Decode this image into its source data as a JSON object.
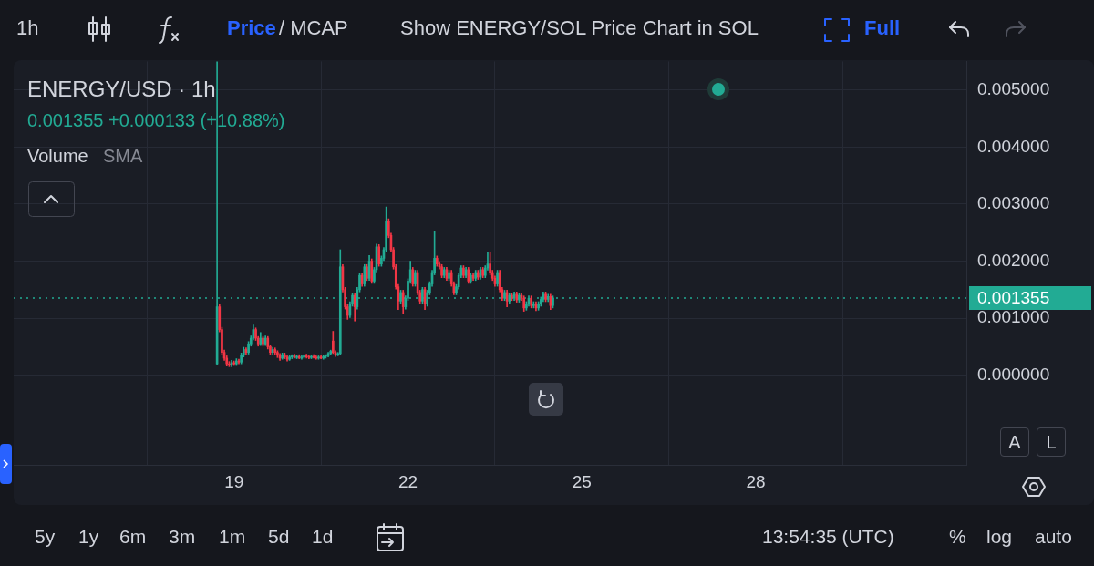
{
  "chart_data": {
    "type": "candlestick",
    "title": "ENERGY/USD · 1h",
    "x": [
      18.708,
      18.75,
      18.792,
      18.833,
      18.875,
      18.917,
      18.958,
      19,
      19.042,
      19.083,
      19.125,
      19.167,
      19.208,
      19.25,
      19.292,
      19.333,
      19.375,
      19.417,
      19.458,
      19.5,
      19.542,
      19.583,
      19.625,
      19.667,
      19.708,
      19.75,
      19.792,
      19.833,
      19.875,
      19.917,
      19.958,
      20,
      20.042,
      20.083,
      20.125,
      20.167,
      20.208,
      20.25,
      20.292,
      20.333,
      20.375,
      20.417,
      20.458,
      20.5,
      20.542,
      20.583,
      20.625,
      20.667,
      20.708,
      20.75,
      20.792,
      20.833,
      20.875,
      20.917,
      20.958,
      21,
      21.042,
      21.083,
      21.125,
      21.167,
      21.208,
      21.25,
      21.292,
      21.333,
      21.375,
      21.417,
      21.458,
      21.5,
      21.542,
      21.583,
      21.625,
      21.667,
      21.708,
      21.75,
      21.792,
      21.833,
      21.875,
      21.917,
      21.958,
      22,
      22.042,
      22.083,
      22.125,
      22.167,
      22.208,
      22.25,
      22.292,
      22.333,
      22.375,
      22.417,
      22.458,
      22.5,
      22.542,
      22.583,
      22.625,
      22.667,
      22.708,
      22.75,
      22.792,
      22.833,
      22.875,
      22.917,
      22.958,
      23,
      23.042,
      23.083,
      23.125,
      23.167,
      23.208,
      23.25,
      23.292,
      23.333,
      23.375,
      23.417,
      23.458,
      23.5,
      23.542,
      23.583,
      23.625,
      23.667,
      23.708,
      23.75,
      23.792,
      23.833,
      23.875,
      23.917,
      23.958,
      24,
      24.042,
      24.083,
      24.125,
      24.167,
      24.208,
      24.25,
      24.292,
      24.333,
      24.375,
      24.417,
      24.458,
      24.5
    ],
    "ohlc": [
      [
        0.0002,
        0.0055,
        0.00018,
        0.0012
      ],
      [
        0.0012,
        0.00124,
        0.00076,
        0.0008
      ],
      [
        0.0008,
        0.00084,
        0.00036,
        0.0004
      ],
      [
        0.0004,
        0.00044,
        0.00026,
        0.0003
      ],
      [
        0.0003,
        0.00034,
        0.00016,
        0.0002
      ],
      [
        0.0002,
        0.00024,
        0.00015,
        0.00018
      ],
      [
        0.00018,
        0.00026,
        0.00015,
        0.00022
      ],
      [
        0.00022,
        0.00025,
        0.00017,
        0.0002
      ],
      [
        0.0002,
        0.00029,
        0.00017,
        0.00025
      ],
      [
        0.00025,
        0.00028,
        0.0002,
        0.00023
      ],
      [
        0.00023,
        0.00039,
        0.0002,
        0.00035
      ],
      [
        0.00035,
        0.00049,
        0.00032,
        0.00045
      ],
      [
        0.00045,
        0.00048,
        0.00036,
        0.0004
      ],
      [
        0.0004,
        0.00059,
        0.00037,
        0.00055
      ],
      [
        0.00055,
        0.00069,
        0.00051,
        0.00065
      ],
      [
        0.00065,
        0.00088,
        0.00062,
        0.0008
      ],
      [
        0.0008,
        0.00083,
        0.00061,
        0.00065
      ],
      [
        0.00065,
        0.00068,
        0.00051,
        0.00055
      ],
      [
        0.00055,
        0.00075,
        0.00052,
        0.00065
      ],
      [
        0.00065,
        0.00068,
        0.00051,
        0.00055
      ],
      [
        0.00055,
        0.00069,
        0.00052,
        0.00065
      ],
      [
        0.00065,
        0.00068,
        0.00046,
        0.0005
      ],
      [
        0.0005,
        0.00053,
        0.00036,
        0.0004
      ],
      [
        0.0004,
        0.00049,
        0.00037,
        0.00045
      ],
      [
        0.00045,
        0.00048,
        0.00036,
        0.0004
      ],
      [
        0.0004,
        0.00043,
        0.00031,
        0.00035
      ],
      [
        0.00035,
        0.00038,
        0.00026,
        0.0003
      ],
      [
        0.0003,
        0.00039,
        0.00028,
        0.00036
      ],
      [
        0.00036,
        0.00039,
        0.00029,
        0.00032
      ],
      [
        0.00032,
        0.00035,
        0.00025,
        0.00028
      ],
      [
        0.00028,
        0.00035,
        0.00026,
        0.00032
      ],
      [
        0.00032,
        0.00036,
        0.00029,
        0.00034
      ],
      [
        0.00034,
        0.00037,
        0.0003,
        0.00031
      ],
      [
        0.00031,
        0.00035,
        0.00029,
        0.00033
      ],
      [
        0.00033,
        0.00036,
        0.00029,
        0.0003
      ],
      [
        0.0003,
        0.00034,
        0.00028,
        0.00032
      ],
      [
        0.00032,
        0.00036,
        0.0003,
        0.00034
      ],
      [
        0.00034,
        0.00037,
        0.0003,
        0.00032
      ],
      [
        0.00032,
        0.00035,
        0.00029,
        0.00031
      ],
      [
        0.00031,
        0.00035,
        0.00029,
        0.00033
      ],
      [
        0.00033,
        0.00036,
        0.0003,
        0.00031
      ],
      [
        0.00031,
        0.00034,
        0.00028,
        0.0003
      ],
      [
        0.0003,
        0.00034,
        0.00028,
        0.00032
      ],
      [
        0.00032,
        0.00035,
        0.00029,
        0.0003
      ],
      [
        0.0003,
        0.00035,
        0.00028,
        0.00033
      ],
      [
        0.00033,
        0.00036,
        0.0003,
        0.00034
      ],
      [
        0.00034,
        0.0004,
        0.00032,
        0.00038
      ],
      [
        0.00038,
        0.00044,
        0.00036,
        0.00042
      ],
      [
        0.0006,
        0.00077,
        0.00038,
        0.0004
      ],
      [
        0.0004,
        0.00043,
        0.00033,
        0.00036
      ],
      [
        0.00036,
        0.0004,
        0.00034,
        0.00038
      ],
      [
        0.00038,
        0.0022,
        0.00036,
        0.0019
      ],
      [
        0.0019,
        0.00194,
        0.00146,
        0.0015
      ],
      [
        0.0015,
        0.00154,
        0.00116,
        0.0012
      ],
      [
        0.0012,
        0.00124,
        0.00098,
        0.00105
      ],
      [
        0.00105,
        0.00129,
        0.00101,
        0.00125
      ],
      [
        0.00125,
        0.00144,
        0.00121,
        0.0014
      ],
      [
        0.0014,
        0.00144,
        0.00095,
        0.0012
      ],
      [
        0.0012,
        0.00154,
        0.00116,
        0.0015
      ],
      [
        0.0015,
        0.00179,
        0.00146,
        0.00175
      ],
      [
        0.00175,
        0.00179,
        0.00156,
        0.0016
      ],
      [
        0.0016,
        0.00194,
        0.00156,
        0.0019
      ],
      [
        0.0019,
        0.00194,
        0.00166,
        0.0017
      ],
      [
        0.0017,
        0.0021,
        0.00166,
        0.002
      ],
      [
        0.002,
        0.00204,
        0.00161,
        0.00165
      ],
      [
        0.00165,
        0.00189,
        0.00161,
        0.00185
      ],
      [
        0.00185,
        0.0023,
        0.00181,
        0.00225
      ],
      [
        0.00225,
        0.00229,
        0.00191,
        0.00195
      ],
      [
        0.00195,
        0.00209,
        0.00191,
        0.00205
      ],
      [
        0.00205,
        0.00224,
        0.00201,
        0.0022
      ],
      [
        0.0022,
        0.00295,
        0.00216,
        0.0027
      ],
      [
        0.0027,
        0.00274,
        0.00241,
        0.00245
      ],
      [
        0.00245,
        0.00249,
        0.00216,
        0.0022
      ],
      [
        0.0022,
        0.00224,
        0.00186,
        0.0019
      ],
      [
        0.0019,
        0.00194,
        0.00151,
        0.00155
      ],
      [
        0.00155,
        0.00159,
        0.00115,
        0.0013
      ],
      [
        0.0013,
        0.00149,
        0.00126,
        0.00145
      ],
      [
        0.00145,
        0.00149,
        0.00108,
        0.0012
      ],
      [
        0.0012,
        0.00139,
        0.00116,
        0.00135
      ],
      [
        0.00135,
        0.00169,
        0.00131,
        0.00165
      ],
      [
        0.00165,
        0.002,
        0.00161,
        0.00185
      ],
      [
        0.00185,
        0.00189,
        0.00156,
        0.0016
      ],
      [
        0.0016,
        0.00184,
        0.00156,
        0.0018
      ],
      [
        0.0018,
        0.00184,
        0.00141,
        0.00145
      ],
      [
        0.00145,
        0.00149,
        0.00126,
        0.0013
      ],
      [
        0.0013,
        0.00154,
        0.00126,
        0.0015
      ],
      [
        0.0015,
        0.00154,
        0.00115,
        0.00125
      ],
      [
        0.00125,
        0.00149,
        0.00121,
        0.00145
      ],
      [
        0.00145,
        0.00164,
        0.00141,
        0.0016
      ],
      [
        0.0016,
        0.00184,
        0.00156,
        0.0018
      ],
      [
        0.0018,
        0.00253,
        0.00176,
        0.00205
      ],
      [
        0.00205,
        0.00209,
        0.00191,
        0.00195
      ],
      [
        0.00195,
        0.00199,
        0.00186,
        0.0019
      ],
      [
        0.0019,
        0.00194,
        0.00171,
        0.00175
      ],
      [
        0.00175,
        0.00189,
        0.00171,
        0.00185
      ],
      [
        0.00185,
        0.00189,
        0.00166,
        0.0017
      ],
      [
        0.0017,
        0.00184,
        0.00166,
        0.0018
      ],
      [
        0.0018,
        0.00184,
        0.00156,
        0.0016
      ],
      [
        0.0016,
        0.00164,
        0.00141,
        0.00145
      ],
      [
        0.00145,
        0.00159,
        0.00141,
        0.00155
      ],
      [
        0.00155,
        0.00179,
        0.00151,
        0.00175
      ],
      [
        0.00175,
        0.00192,
        0.00171,
        0.00188
      ],
      [
        0.00188,
        0.00192,
        0.00171,
        0.00175
      ],
      [
        0.00175,
        0.00189,
        0.00171,
        0.00185
      ],
      [
        0.00185,
        0.00189,
        0.00161,
        0.00165
      ],
      [
        0.00165,
        0.00179,
        0.00161,
        0.00175
      ],
      [
        0.00175,
        0.00179,
        0.00166,
        0.0017
      ],
      [
        0.0017,
        0.00184,
        0.00166,
        0.0018
      ],
      [
        0.0018,
        0.00184,
        0.00168,
        0.00172
      ],
      [
        0.00172,
        0.00189,
        0.00168,
        0.00185
      ],
      [
        0.00185,
        0.00189,
        0.00171,
        0.00175
      ],
      [
        0.00175,
        0.00192,
        0.00171,
        0.00188
      ],
      [
        0.00188,
        0.00215,
        0.00184,
        0.00195
      ],
      [
        0.00195,
        0.00215,
        0.00176,
        0.0018
      ],
      [
        0.0018,
        0.00184,
        0.00166,
        0.0017
      ],
      [
        0.0017,
        0.00174,
        0.00156,
        0.0016
      ],
      [
        0.0016,
        0.00184,
        0.00156,
        0.0018
      ],
      [
        0.0018,
        0.00184,
        0.00146,
        0.0015
      ],
      [
        0.0015,
        0.00154,
        0.00131,
        0.00135
      ],
      [
        0.00135,
        0.00149,
        0.00131,
        0.00145
      ],
      [
        0.00145,
        0.00149,
        0.0012,
        0.0013
      ],
      [
        0.0013,
        0.00144,
        0.00126,
        0.0014
      ],
      [
        0.0014,
        0.00144,
        0.00131,
        0.00135
      ],
      [
        0.00135,
        0.00146,
        0.00131,
        0.00142
      ],
      [
        0.00142,
        0.00146,
        0.00128,
        0.00132
      ],
      [
        0.00132,
        0.00144,
        0.00128,
        0.0014
      ],
      [
        0.0014,
        0.00144,
        0.00131,
        0.00135
      ],
      [
        0.00135,
        0.00139,
        0.00112,
        0.00118
      ],
      [
        0.00118,
        0.00129,
        0.00114,
        0.00125
      ],
      [
        0.00125,
        0.00139,
        0.00121,
        0.00135
      ],
      [
        0.00135,
        0.00139,
        0.00118,
        0.00122
      ],
      [
        0.00122,
        0.00129,
        0.00118,
        0.00125
      ],
      [
        0.00125,
        0.00129,
        0.00113,
        0.00118
      ],
      [
        0.00118,
        0.00129,
        0.00114,
        0.00125
      ],
      [
        0.00125,
        0.00137,
        0.00121,
        0.00133
      ],
      [
        0.00133,
        0.00146,
        0.00129,
        0.00142
      ],
      [
        0.00142,
        0.00146,
        0.00129,
        0.00133
      ],
      [
        0.00133,
        0.00142,
        0.00129,
        0.00138
      ],
      [
        0.00138,
        0.00142,
        0.00115,
        0.001222
      ],
      [
        0.001222,
        0.00139,
        0.00118,
        0.001355
      ]
    ],
    "colors": [
      "#22ab94",
      "#f23645",
      "#f23645",
      "#f23645",
      "#f23645",
      "#f23645",
      "#22ab94",
      "#f23645",
      "#22ab94",
      "#f23645",
      "#22ab94",
      "#22ab94",
      "#f23645",
      "#22ab94",
      "#22ab94",
      "#22ab94",
      "#f23645",
      "#f23645",
      "#22ab94",
      "#f23645",
      "#22ab94",
      "#f23645",
      "#f23645",
      "#22ab94",
      "#f23645",
      "#f23645",
      "#f23645",
      "#22ab94",
      "#f23645",
      "#f23645",
      "#22ab94",
      "#22ab94",
      "#f23645",
      "#22ab94",
      "#f23645",
      "#22ab94",
      "#22ab94",
      "#f23645",
      "#f23645",
      "#22ab94",
      "#f23645",
      "#f23645",
      "#22ab94",
      "#f23645",
      "#22ab94",
      "#22ab94",
      "#22ab94",
      "#22ab94",
      "#f23645",
      "#f23645",
      "#22ab94",
      "#22ab94",
      "#f23645",
      "#f23645",
      "#f23645",
      "#22ab94",
      "#22ab94",
      "#f23645",
      "#22ab94",
      "#22ab94",
      "#f23645",
      "#22ab94",
      "#f23645",
      "#22ab94",
      "#f23645",
      "#22ab94",
      "#22ab94",
      "#f23645",
      "#22ab94",
      "#22ab94",
      "#22ab94",
      "#f23645",
      "#f23645",
      "#f23645",
      "#f23645",
      "#f23645",
      "#22ab94",
      "#f23645",
      "#22ab94",
      "#22ab94",
      "#22ab94",
      "#f23645",
      "#22ab94",
      "#f23645",
      "#f23645",
      "#22ab94",
      "#f23645",
      "#22ab94",
      "#22ab94",
      "#22ab94",
      "#22ab94",
      "#f23645",
      "#f23645",
      "#f23645",
      "#22ab94",
      "#f23645",
      "#22ab94",
      "#f23645",
      "#f23645",
      "#22ab94",
      "#22ab94",
      "#22ab94",
      "#f23645",
      "#22ab94",
      "#f23645",
      "#22ab94",
      "#f23645",
      "#22ab94",
      "#f23645",
      "#22ab94",
      "#f23645",
      "#22ab94",
      "#22ab94",
      "#f23645",
      "#f23645",
      "#f23645",
      "#22ab94",
      "#f23645",
      "#f23645",
      "#22ab94",
      "#f23645",
      "#22ab94",
      "#f23645",
      "#22ab94",
      "#f23645",
      "#22ab94",
      "#f23645",
      "#f23645",
      "#22ab94",
      "#22ab94",
      "#f23645",
      "#22ab94",
      "#f23645",
      "#22ab94",
      "#22ab94",
      "#22ab94",
      "#f23645",
      "#22ab94",
      "#f23645",
      "#22ab94"
    ],
    "xlim": [
      15.2,
      31.63
    ],
    "xticks": [
      19,
      22,
      25,
      28
    ],
    "ylim": [
      -0.00157,
      0.0055
    ],
    "yticks": [
      {
        "value": 0,
        "label": "0.000000"
      },
      {
        "value": 0.001,
        "label": "0.001000"
      },
      {
        "value": 0.002,
        "label": "0.002000"
      },
      {
        "value": 0.003,
        "label": "0.003000"
      },
      {
        "value": 0.004,
        "label": "0.004000"
      },
      {
        "value": 0.005,
        "label": "0.005000"
      }
    ],
    "grid": true,
    "ref_lines": [
      {
        "axis": "y",
        "value": 0.001355,
        "label": "0.001355",
        "color": "#22ab94",
        "line_style": "dotted"
      }
    ],
    "annotations": [
      "1h",
      "Price",
      "/ MCAP",
      "Show ENERGY/SOL Price Chart in SOL",
      "Full",
      "0.001355 +0.000133 (+10.88%)",
      "Volume",
      "SMA",
      "A",
      "L",
      "5y",
      "1y",
      "6m",
      "3m",
      "1m",
      "5d",
      "1d",
      "13:54:35 (UTC)",
      "%",
      "log",
      "auto"
    ]
  }
}
